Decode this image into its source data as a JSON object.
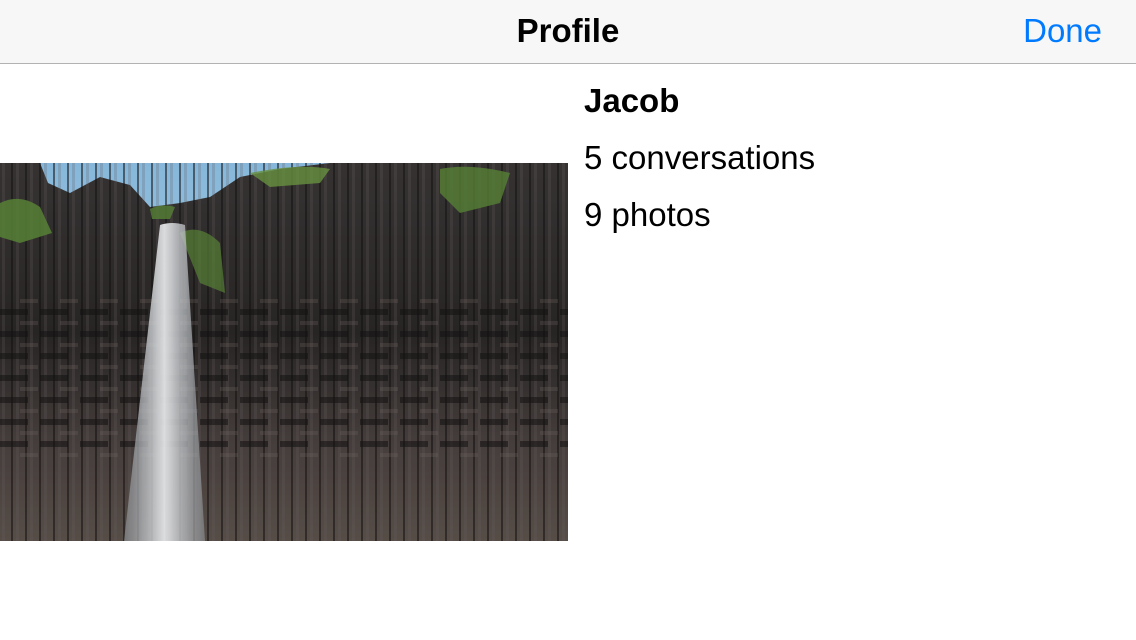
{
  "navbar": {
    "title": "Profile",
    "done_label": "Done",
    "accent_color": "#007aff"
  },
  "profile": {
    "name": "Jacob",
    "conversations": "5 conversations",
    "photos": "9 photos",
    "photo_icon": "photo-icon"
  }
}
